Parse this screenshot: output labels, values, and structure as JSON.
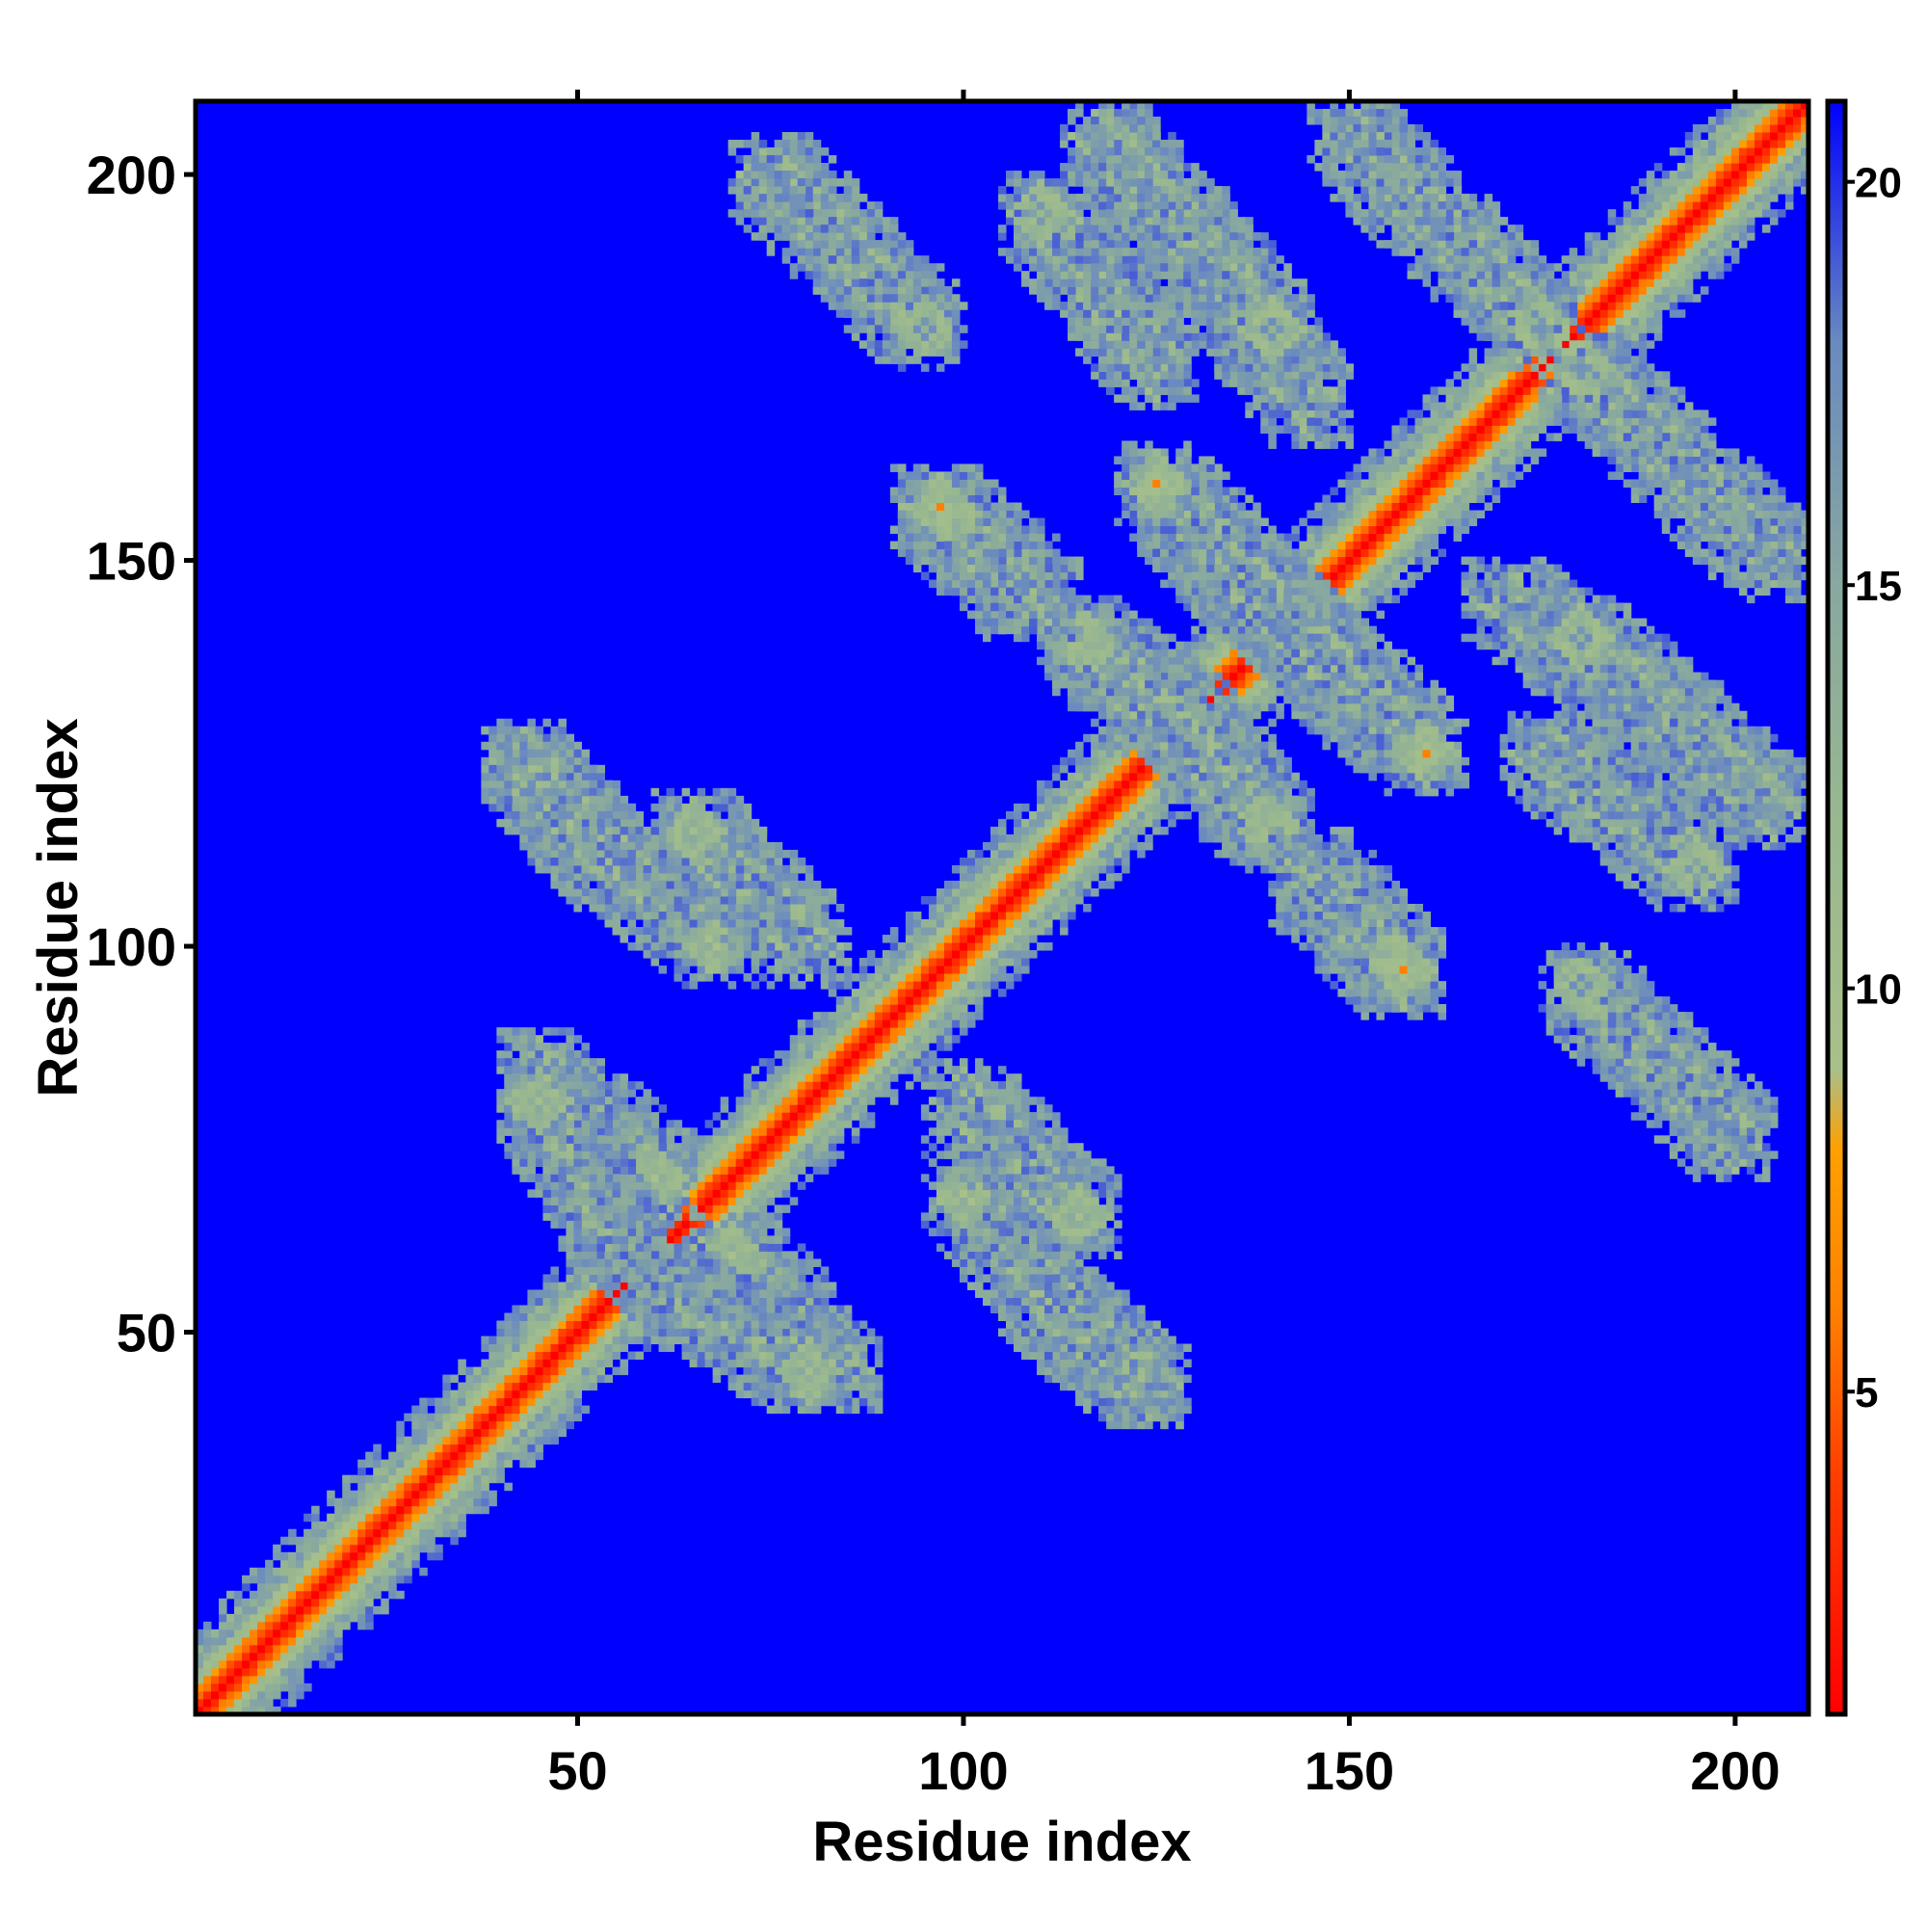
{
  "chart_data": {
    "type": "heatmap",
    "title": "",
    "xlabel": "Residue index",
    "ylabel": "Residue index",
    "xlim": [
      1,
      209
    ],
    "ylim": [
      1,
      209
    ],
    "x_ticks": [
      50,
      100,
      150,
      200
    ],
    "y_ticks": [
      50,
      100,
      150,
      200
    ],
    "grid": false,
    "colorbar": {
      "ticks": [
        5,
        10,
        15,
        20
      ],
      "range": [
        1,
        21
      ],
      "stops": [
        {
          "value": 1,
          "color": "#ff0000"
        },
        {
          "value": 4,
          "color": "#ff4000"
        },
        {
          "value": 6,
          "color": "#ff8000"
        },
        {
          "value": 8,
          "color": "#ffa000"
        },
        {
          "value": 9,
          "color": "#a8c08a"
        },
        {
          "value": 12,
          "color": "#99b890"
        },
        {
          "value": 15,
          "color": "#88a8a0"
        },
        {
          "value": 18,
          "color": "#6a8ac0"
        },
        {
          "value": 21,
          "color": "#0000ff"
        }
      ]
    },
    "background_color": "#0000ff",
    "matrix_description": {
      "diagonal": {
        "from": 1,
        "to": 209,
        "value": 2
      },
      "contact_bands": [
        {
          "x": [
            96,
            108
          ],
          "y": [
            157,
            145
          ],
          "value": 6
        },
        {
          "x": [
            128,
            160
          ],
          "y": [
            155,
            125
          ],
          "value": 6
        },
        {
          "x": [
            117,
            130
          ],
          "y": [
            139,
            128
          ],
          "value": 7
        },
        {
          "x": [
            130,
            140
          ],
          "y": [
            126,
            115
          ],
          "value": 7
        },
        {
          "x": [
            145,
            157
          ],
          "y": [
            110,
            97
          ],
          "value": 6
        },
        {
          "x": [
            110,
            123
          ],
          "y": [
            55,
            43
          ],
          "value": 6
        },
        {
          "x": [
            43,
            53
          ],
          "y": [
            124,
            112
          ],
          "value": 6
        },
        {
          "x": [
            54,
            68
          ],
          "y": [
            112,
            100
          ],
          "value": 9
        },
        {
          "x": [
            45,
            60
          ],
          "y": [
            84,
            70
          ],
          "value": 9
        },
        {
          "x": [
            60,
            80
          ],
          "y": [
            57,
            45
          ],
          "value": 10
        },
        {
          "x": [
            100,
            115
          ],
          "y": [
            80,
            65
          ],
          "value": 10
        },
        {
          "x": [
            170,
            190
          ],
          "y": [
            145,
            130
          ],
          "value": 12
        },
        {
          "x": [
            175,
            195
          ],
          "y": [
            125,
            110
          ],
          "value": 12
        },
        {
          "x": [
            75,
            95
          ],
          "y": [
            200,
            180
          ],
          "value": 13
        },
        {
          "x": [
            118,
            140
          ],
          "y": [
            205,
            180
          ],
          "value": 13
        },
        {
          "x": [
            150,
            175
          ],
          "y": [
            205,
            180
          ],
          "value": 13
        }
      ]
    }
  }
}
